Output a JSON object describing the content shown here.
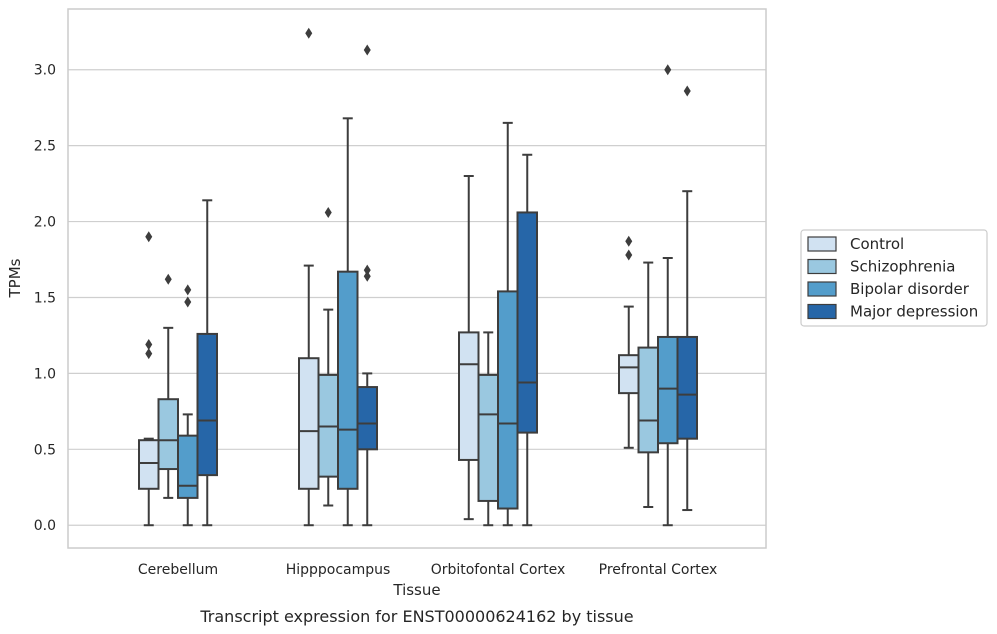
{
  "caption": "Transcript expression for ENST00000624162 by tissue",
  "colors": {
    "Control": "#d1e2f2",
    "Schizophrenia": "#9ac8e0",
    "Bipolar disorder": "#539dcb",
    "Major depression": "#2666a8",
    "line": "#3d3d3d",
    "grid": "#cfcfcf",
    "frame": "#cccccc"
  },
  "chart_data": {
    "type": "box",
    "title": "",
    "xlabel": "Tissue",
    "ylabel": "TPMs",
    "ylim": [
      -0.15,
      3.4
    ],
    "yticks": [
      0.0,
      0.5,
      1.0,
      1.5,
      2.0,
      2.5,
      3.0
    ],
    "ytick_labels": [
      "0.0",
      "0.5",
      "1.0",
      "1.5",
      "2.0",
      "2.5",
      "3.0"
    ],
    "grid": "horizontal",
    "legend_position": "right",
    "categories": [
      "Cerebellum",
      "Hipppocampus",
      "Orbitofontal Cortex",
      "Prefrontal Cortex"
    ],
    "series": [
      {
        "name": "Control",
        "boxes": [
          {
            "whislo": 0.0,
            "q1": 0.24,
            "med": 0.41,
            "q3": 0.56,
            "whishi": 0.57,
            "fliers": [
              1.13,
              1.19,
              1.9
            ]
          },
          {
            "whislo": 0.0,
            "q1": 0.24,
            "med": 0.62,
            "q3": 1.1,
            "whishi": 1.71,
            "fliers": [
              3.24
            ]
          },
          {
            "whislo": 0.04,
            "q1": 0.43,
            "med": 1.06,
            "q3": 1.27,
            "whishi": 2.3,
            "fliers": []
          },
          {
            "whislo": 0.51,
            "q1": 0.87,
            "med": 1.04,
            "q3": 1.12,
            "whishi": 1.44,
            "fliers": [
              1.78,
              1.87
            ]
          }
        ]
      },
      {
        "name": "Schizophrenia",
        "boxes": [
          {
            "whislo": 0.18,
            "q1": 0.37,
            "med": 0.56,
            "q3": 0.83,
            "whishi": 1.3,
            "fliers": [
              1.62
            ]
          },
          {
            "whislo": 0.13,
            "q1": 0.32,
            "med": 0.65,
            "q3": 0.99,
            "whishi": 1.42,
            "fliers": [
              2.06
            ]
          },
          {
            "whislo": 0.0,
            "q1": 0.16,
            "med": 0.73,
            "q3": 0.99,
            "whishi": 1.27,
            "fliers": []
          },
          {
            "whislo": 0.12,
            "q1": 0.48,
            "med": 0.69,
            "q3": 1.17,
            "whishi": 1.73,
            "fliers": []
          }
        ]
      },
      {
        "name": "Bipolar disorder",
        "boxes": [
          {
            "whislo": 0.0,
            "q1": 0.18,
            "med": 0.26,
            "q3": 0.59,
            "whishi": 0.73,
            "fliers": [
              1.47,
              1.55
            ]
          },
          {
            "whislo": 0.0,
            "q1": 0.24,
            "med": 0.63,
            "q3": 1.67,
            "whishi": 2.68,
            "fliers": []
          },
          {
            "whislo": 0.0,
            "q1": 0.11,
            "med": 0.67,
            "q3": 1.54,
            "whishi": 2.65,
            "fliers": []
          },
          {
            "whislo": 0.0,
            "q1": 0.54,
            "med": 0.9,
            "q3": 1.24,
            "whishi": 1.76,
            "fliers": [
              3.0
            ]
          }
        ]
      },
      {
        "name": "Major depression",
        "boxes": [
          {
            "whislo": 0.0,
            "q1": 0.33,
            "med": 0.69,
            "q3": 1.26,
            "whishi": 2.14,
            "fliers": []
          },
          {
            "whislo": 0.0,
            "q1": 0.5,
            "med": 0.67,
            "q3": 0.91,
            "whishi": 1.0,
            "fliers": [
              1.64,
              1.68,
              3.13
            ]
          },
          {
            "whislo": 0.0,
            "q1": 0.61,
            "med": 0.94,
            "q3": 2.06,
            "whishi": 2.44,
            "fliers": []
          },
          {
            "whislo": 0.1,
            "q1": 0.57,
            "med": 0.86,
            "q3": 1.24,
            "whishi": 2.2,
            "fliers": [
              2.86
            ]
          }
        ]
      }
    ]
  }
}
